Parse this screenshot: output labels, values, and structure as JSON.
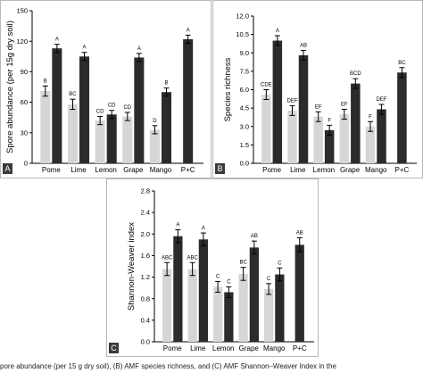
{
  "colors": {
    "light": "#d6d6d6",
    "dark": "#2b2b2b",
    "tag_bg": "#3a3a3a",
    "frame": "#b8b8b8"
  },
  "caption": "pore abundance (per 15 g dry soil), (B) AMF species richness, and (C) AMF Shannon–Weaver Index in the",
  "chart_data": [
    {
      "panel": "A",
      "type": "bar",
      "ylabel": "Spore abundance (per 15g dry soil)",
      "xlabel": "",
      "categories": [
        "Pome",
        "Lime",
        "Lemon",
        "Grape",
        "Mango",
        "P+C"
      ],
      "ylim": [
        0,
        150
      ],
      "yticks": [
        "0",
        "30",
        "60",
        "90",
        "120",
        "150"
      ],
      "series": [
        {
          "values": [
            71,
            58,
            42,
            46,
            33,
            null
          ],
          "errors": [
            5,
            5,
            4,
            4,
            4,
            null
          ],
          "letters": [
            "B",
            "BC",
            "CD",
            "CD",
            "D",
            ""
          ]
        },
        {
          "values": [
            113,
            105,
            48,
            104,
            70,
            122
          ],
          "errors": [
            4,
            4,
            4,
            4,
            4,
            4
          ],
          "letters": [
            "A",
            "A",
            "CD",
            "A",
            "B",
            "A"
          ]
        }
      ]
    },
    {
      "panel": "B",
      "type": "bar",
      "ylabel": "Species richness",
      "xlabel": "",
      "categories": [
        "Pome",
        "Lime",
        "Lemon",
        "Grape",
        "Mango",
        "P+C"
      ],
      "ylim": [
        0,
        12.0
      ],
      "yticks": [
        "0.0",
        "1.5",
        "3.0",
        "4.5",
        "6.0",
        "7.5",
        "9.0",
        "10.5",
        "12.0"
      ],
      "series": [
        {
          "values": [
            5.6,
            4.3,
            3.8,
            4.0,
            3.0,
            null
          ],
          "errors": [
            0.4,
            0.4,
            0.4,
            0.4,
            0.4,
            null
          ],
          "letters": [
            "CDE",
            "DEF",
            "EF",
            "EF",
            "F",
            ""
          ]
        },
        {
          "values": [
            10.0,
            8.8,
            2.7,
            6.5,
            4.4,
            7.4
          ],
          "errors": [
            0.4,
            0.4,
            0.4,
            0.4,
            0.4,
            0.4
          ],
          "letters": [
            "A",
            "AB",
            "F",
            "BCD",
            "DEF",
            "BC"
          ]
        }
      ]
    },
    {
      "panel": "C",
      "type": "bar",
      "ylabel": "Shannon-Weaver index",
      "xlabel": "",
      "categories": [
        "Pome",
        "Lime",
        "Lemon",
        "Grape",
        "Mango",
        "P+C"
      ],
      "ylim": [
        0,
        2.8
      ],
      "yticks": [
        "0.0",
        "0.4",
        "0.8",
        "1.2",
        "1.6",
        "2.0",
        "2.4",
        "2.8"
      ],
      "series": [
        {
          "values": [
            1.35,
            1.35,
            1.02,
            1.26,
            0.98,
            null
          ],
          "errors": [
            0.12,
            0.12,
            0.1,
            0.12,
            0.1,
            null
          ],
          "letters": [
            "ABC",
            "ABC",
            "C",
            "BC",
            "C",
            ""
          ]
        },
        {
          "values": [
            1.96,
            1.9,
            0.92,
            1.75,
            1.25,
            1.8
          ],
          "errors": [
            0.12,
            0.12,
            0.1,
            0.12,
            0.12,
            0.13
          ],
          "letters": [
            "A",
            "A",
            "C",
            "AB",
            "C",
            "AB"
          ]
        }
      ]
    }
  ]
}
